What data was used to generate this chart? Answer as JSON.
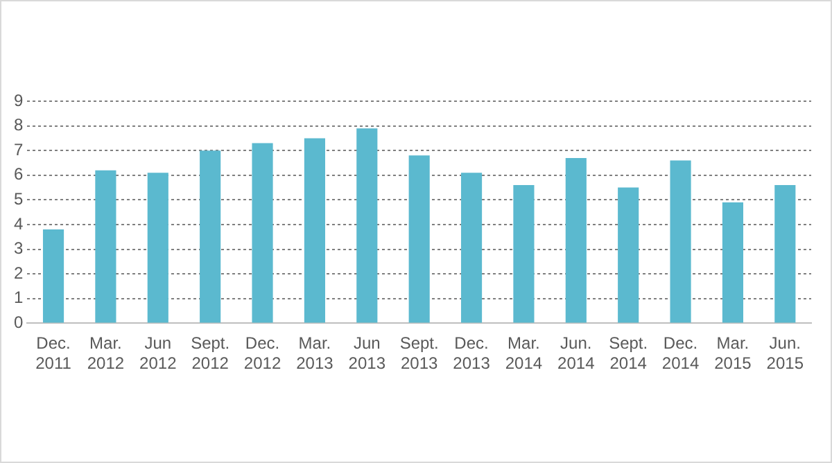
{
  "chart_data": {
    "type": "bar",
    "categories": [
      "Dec. 2011",
      "Mar. 2012",
      "Jun 2012",
      "Sept. 2012",
      "Dec. 2012",
      "Mar. 2013",
      "Jun 2013",
      "Sept. 2013",
      "Dec. 2013",
      "Mar. 2014",
      "Jun. 2014",
      "Sept. 2014",
      "Dec. 2014",
      "Mar. 2015",
      "Jun. 2015"
    ],
    "values": [
      3.8,
      6.2,
      6.1,
      7.0,
      7.3,
      7.5,
      7.9,
      6.8,
      6.1,
      5.6,
      6.7,
      5.5,
      6.6,
      4.9,
      5.6
    ],
    "color": "#5bb9cf",
    "ylim": [
      0,
      9
    ],
    "yticks": [
      0,
      1,
      2,
      3,
      4,
      5,
      6,
      7,
      8,
      9
    ],
    "grid": "y",
    "legend": false
  }
}
